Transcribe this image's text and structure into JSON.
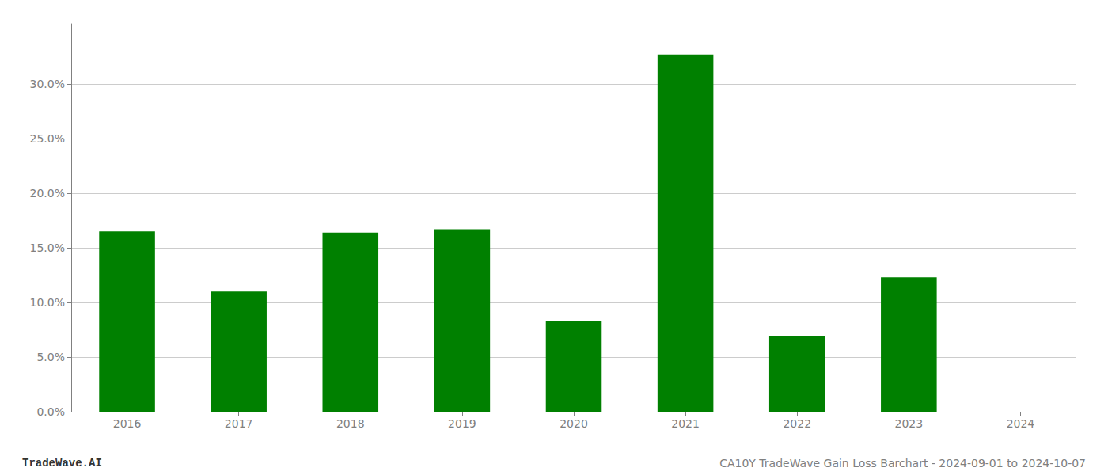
{
  "chart_data": {
    "type": "bar",
    "categories": [
      "2016",
      "2017",
      "2018",
      "2019",
      "2020",
      "2021",
      "2022",
      "2023",
      "2024"
    ],
    "values": [
      0.165,
      0.11,
      0.164,
      0.167,
      0.083,
      0.327,
      0.069,
      0.123,
      0.0
    ],
    "color": "#008000",
    "ylim": [
      0,
      0.355
    ],
    "yticks": [
      {
        "value": 0.0,
        "label": "0.0%"
      },
      {
        "value": 0.05,
        "label": "5.0%"
      },
      {
        "value": 0.1,
        "label": "10.0%"
      },
      {
        "value": 0.15,
        "label": "15.0%"
      },
      {
        "value": 0.2,
        "label": "20.0%"
      },
      {
        "value": 0.25,
        "label": "25.0%"
      },
      {
        "value": 0.3,
        "label": "30.0%"
      }
    ],
    "grid": true,
    "annotations": [
      "TradeWave.AI",
      "CA10Y TradeWave Gain Loss Barchart - 2024-09-01 to 2024-10-07"
    ]
  }
}
